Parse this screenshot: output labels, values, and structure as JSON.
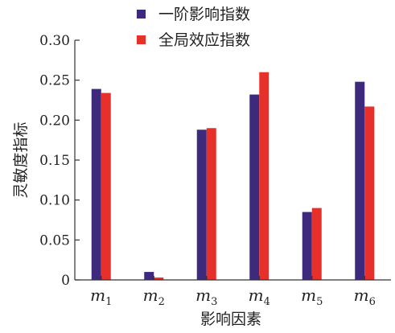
{
  "chart_data": {
    "type": "bar",
    "categories": [
      "m1",
      "m2",
      "m3",
      "m4",
      "m5",
      "m6"
    ],
    "category_labels": [
      {
        "base": "m",
        "sub": "1"
      },
      {
        "base": "m",
        "sub": "2"
      },
      {
        "base": "m",
        "sub": "3"
      },
      {
        "base": "m",
        "sub": "4"
      },
      {
        "base": "m",
        "sub": "5"
      },
      {
        "base": "m",
        "sub": "6"
      }
    ],
    "series": [
      {
        "name": "一阶影响指数",
        "color": "#3d2a7d",
        "values": [
          0.239,
          0.01,
          0.188,
          0.232,
          0.085,
          0.248
        ]
      },
      {
        "name": "全局效应指数",
        "color": "#e8302a",
        "values": [
          0.234,
          0.003,
          0.19,
          0.26,
          0.09,
          0.217
        ]
      }
    ],
    "xlabel": "影响因素",
    "ylabel": "灵敏度指标",
    "ylim": [
      0,
      0.3
    ],
    "yticks": [
      "0",
      "0.05",
      "0.10",
      "0.15",
      "0.20",
      "0.25",
      "0.30"
    ],
    "ytick_values": [
      0,
      0.05,
      0.1,
      0.15,
      0.2,
      0.25,
      0.3
    ],
    "grid": false,
    "legend_position": "top"
  }
}
